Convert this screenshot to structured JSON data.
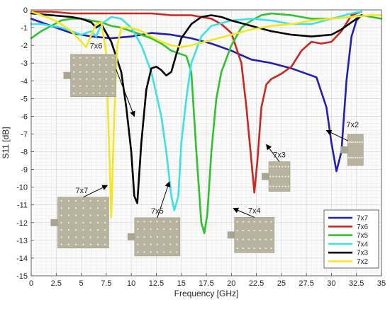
{
  "chart_data": {
    "type": "line",
    "xlabel": "Frequency [GHz]",
    "ylabel": "S11 [dB]",
    "xlim": [
      0,
      35
    ],
    "ylim": [
      -15,
      0
    ],
    "xticks": [
      "0",
      "2.5",
      "5",
      "7.5",
      "10",
      "12.5",
      "15",
      "17.5",
      "20",
      "22.5",
      "25",
      "27.5",
      "30",
      "32.5",
      "35"
    ],
    "yticks": [
      "0",
      "-1",
      "-2",
      "-3",
      "-4",
      "-5",
      "-6",
      "-7",
      "-8",
      "-9",
      "-10",
      "-11",
      "-12",
      "-13",
      "-14",
      "-15"
    ],
    "grid": true,
    "legend_position": "bottom-right",
    "series": [
      {
        "name": "7x7",
        "color": "#1f1fb4",
        "x": [
          0,
          2,
          4,
          6,
          8,
          10,
          12,
          14,
          16,
          18,
          20,
          22,
          24,
          26,
          27.5,
          28.5,
          29.5,
          30,
          30.5,
          31,
          31.5,
          32,
          32.5,
          33
        ],
        "y": [
          -0.5,
          -0.9,
          -1.3,
          -1.5,
          -1.6,
          -1.5,
          -1.3,
          -1.4,
          -1.6,
          -1.9,
          -2.3,
          -2.8,
          -3.0,
          -3.3,
          -3.6,
          -3.8,
          -5.5,
          -7.5,
          -9.1,
          -8.0,
          -4.0,
          -1.5,
          -0.6,
          -0.3
        ]
      },
      {
        "name": "7x6",
        "color": "#c8281e",
        "x": [
          0,
          2,
          4,
          6,
          8,
          10,
          12,
          14,
          16,
          18,
          19,
          20,
          21,
          21.5,
          22,
          22.3,
          22.6,
          23,
          23.5,
          24,
          25,
          26,
          27,
          28,
          29,
          30,
          31,
          32,
          33
        ],
        "y": [
          -0.1,
          -0.1,
          -0.2,
          -0.2,
          -0.2,
          -0.2,
          -0.2,
          -0.3,
          -0.3,
          -0.5,
          -0.8,
          -1.3,
          -3.0,
          -5.5,
          -8.5,
          -10.3,
          -8.5,
          -5.5,
          -4.2,
          -3.9,
          -3.6,
          -3.2,
          -2.3,
          -1.8,
          -1.9,
          -1.8,
          -1.2,
          -0.3,
          -0.1
        ]
      },
      {
        "name": "7x5",
        "color": "#2ec32e",
        "x": [
          0,
          1,
          2,
          3,
          4,
          5,
          6,
          7,
          8,
          9,
          10,
          11,
          12,
          13,
          14,
          15,
          15.5,
          16,
          16.5,
          17,
          17.3,
          17.6,
          18,
          18.5,
          19,
          20,
          21,
          22,
          23,
          24,
          26,
          28,
          30,
          32,
          33,
          35
        ],
        "y": [
          -1.6,
          -1.2,
          -0.9,
          -0.6,
          -0.5,
          -0.5,
          -0.6,
          -0.7,
          -0.9,
          -1.0,
          -1.2,
          -1.4,
          -1.6,
          -1.9,
          -2.3,
          -2.5,
          -2.6,
          -3.5,
          -8.0,
          -12.0,
          -12.6,
          -11.5,
          -8.0,
          -5.0,
          -3.5,
          -2.0,
          -1.0,
          -0.6,
          -0.3,
          -0.2,
          -0.3,
          -0.5,
          -0.5,
          -0.4,
          -0.3,
          -0.5
        ]
      },
      {
        "name": "7x4",
        "color": "#3ce0e8",
        "x": [
          0,
          1,
          2,
          3,
          4,
          5,
          5.5,
          6,
          6.5,
          7,
          8,
          9,
          10,
          11,
          12,
          13,
          13.5,
          14,
          14.3,
          14.7,
          15,
          15.5,
          16,
          17,
          18,
          20,
          22,
          24,
          26,
          28,
          30,
          32,
          33
        ],
        "y": [
          -0.8,
          -0.8,
          -0.9,
          -1.0,
          -1.2,
          -1.4,
          -1.3,
          -1.2,
          -1.5,
          -0.8,
          -0.4,
          -0.5,
          -1.0,
          -2.0,
          -3.5,
          -6.0,
          -8.0,
          -10.5,
          -11.3,
          -10.5,
          -7.5,
          -5.0,
          -3.0,
          -1.5,
          -0.9,
          -0.6,
          -0.5,
          -0.6,
          -0.8,
          -0.8,
          -0.5,
          -0.2,
          -0.1
        ]
      },
      {
        "name": "7x3",
        "color": "#000000",
        "x": [
          0,
          2,
          4,
          5,
          6,
          6.5,
          7,
          8,
          9,
          9.5,
          10,
          10.3,
          10.6,
          11,
          11.5,
          12,
          12.5,
          13,
          13.5,
          14,
          14.5,
          15,
          16,
          17,
          18,
          19,
          20,
          22,
          24,
          26,
          28,
          30,
          31,
          32,
          33
        ],
        "y": [
          -0.2,
          -0.3,
          -0.4,
          -0.5,
          -0.7,
          -1.0,
          -0.8,
          -1.8,
          -3.5,
          -5.5,
          -8.0,
          -10.5,
          -10.9,
          -7.5,
          -4.5,
          -3.3,
          -3.2,
          -3.4,
          -3.7,
          -3.5,
          -2.5,
          -1.6,
          -0.8,
          -0.4,
          -0.3,
          -0.4,
          -0.6,
          -0.9,
          -1.2,
          -1.4,
          -1.5,
          -1.4,
          -1.1,
          -0.7,
          -0.3
        ]
      },
      {
        "name": "7x2",
        "color": "#f5e61e",
        "x": [
          0,
          1,
          2,
          3,
          4,
          5,
          5.5,
          6,
          6.5,
          7,
          7.5,
          7.8,
          8.0,
          8.3,
          8.6,
          9,
          10,
          11,
          12,
          13,
          14,
          15,
          16,
          18,
          20,
          22,
          24,
          26,
          28,
          30,
          32,
          34,
          35
        ],
        "y": [
          -0.1,
          -0.3,
          -0.5,
          -0.8,
          -1.2,
          -1.8,
          -2.1,
          -1.4,
          -0.8,
          -0.7,
          -2.5,
          -8.0,
          -11.7,
          -6.0,
          -2.0,
          -1.0,
          -1.0,
          -1.2,
          -1.5,
          -1.8,
          -2.0,
          -2.1,
          -2.0,
          -1.7,
          -1.4,
          -1.1,
          -0.9,
          -0.8,
          -0.6,
          -0.5,
          -0.4,
          -0.3,
          -0.3
        ]
      }
    ],
    "annotations": [
      {
        "label": "7x6",
        "cols": 7,
        "rows": 6,
        "target": [
          10.3,
          -6.0
        ],
        "tail": [
          6.2,
          -3.7
        ]
      },
      {
        "label": "7x7",
        "cols": 7,
        "rows": 7,
        "target": [
          7.6,
          -9.9
        ],
        "tail": [
          5.2,
          -12.0
        ]
      },
      {
        "label": "7x5",
        "cols": 7,
        "rows": 5,
        "target": [
          13.8,
          -9.7
        ],
        "tail": [
          12.6,
          -12.8
        ]
      },
      {
        "label": "7x4",
        "cols": 7,
        "rows": 4,
        "target": [
          20.2,
          -11.2
        ],
        "tail": [
          22.3,
          -12.7
        ]
      },
      {
        "label": "7x3",
        "cols": 7,
        "rows": 3,
        "target": [
          23.5,
          -7.6
        ],
        "tail": [
          24.8,
          -9.4
        ]
      },
      {
        "label": "7x2",
        "cols": 7,
        "rows": 2,
        "target": [
          29.5,
          -6.8
        ],
        "tail": [
          32.4,
          -7.9
        ]
      }
    ]
  }
}
